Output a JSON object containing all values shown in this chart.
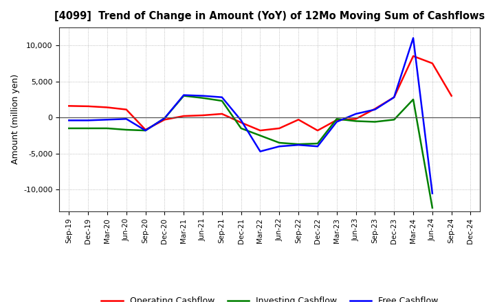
{
  "title": "[4099]  Trend of Change in Amount (YoY) of 12Mo Moving Sum of Cashflows",
  "ylabel": "Amount (million yen)",
  "background_color": "#ffffff",
  "grid_color": "#aaaaaa",
  "x_labels": [
    "Sep-19",
    "Dec-19",
    "Mar-20",
    "Jun-20",
    "Sep-20",
    "Dec-20",
    "Mar-21",
    "Jun-21",
    "Sep-21",
    "Dec-21",
    "Mar-22",
    "Jun-22",
    "Sep-22",
    "Dec-22",
    "Mar-23",
    "Jun-23",
    "Sep-23",
    "Dec-23",
    "Mar-24",
    "Jun-24",
    "Sep-24",
    "Dec-24"
  ],
  "operating_cashflow": [
    1600,
    1550,
    1400,
    1100,
    -1700,
    -300,
    200,
    300,
    500,
    -700,
    -1800,
    -1500,
    -300,
    -1800,
    -350,
    -200,
    1200,
    2800,
    8500,
    7500,
    3000,
    null
  ],
  "investing_cashflow": [
    -1500,
    -1500,
    -1500,
    -1700,
    -1800,
    -100,
    3000,
    2700,
    2300,
    -1500,
    -2500,
    -3500,
    -3700,
    -3600,
    -200,
    -500,
    -600,
    -300,
    2500,
    -12500,
    null,
    null
  ],
  "free_cashflow": [
    -400,
    -400,
    -300,
    -200,
    -1800,
    -100,
    3100,
    3000,
    2800,
    -400,
    -4700,
    -4000,
    -3800,
    -4000,
    -600,
    500,
    1100,
    2800,
    11000,
    -10500,
    null,
    null
  ],
  "ylim": [
    -13000,
    12500
  ],
  "yticks": [
    -10000,
    -5000,
    0,
    5000,
    10000
  ],
  "line_colors": {
    "operating": "#ff0000",
    "investing": "#008000",
    "free": "#0000ff"
  },
  "legend_labels": {
    "operating": "Operating Cashflow",
    "investing": "Investing Cashflow",
    "free": "Free Cashflow"
  }
}
